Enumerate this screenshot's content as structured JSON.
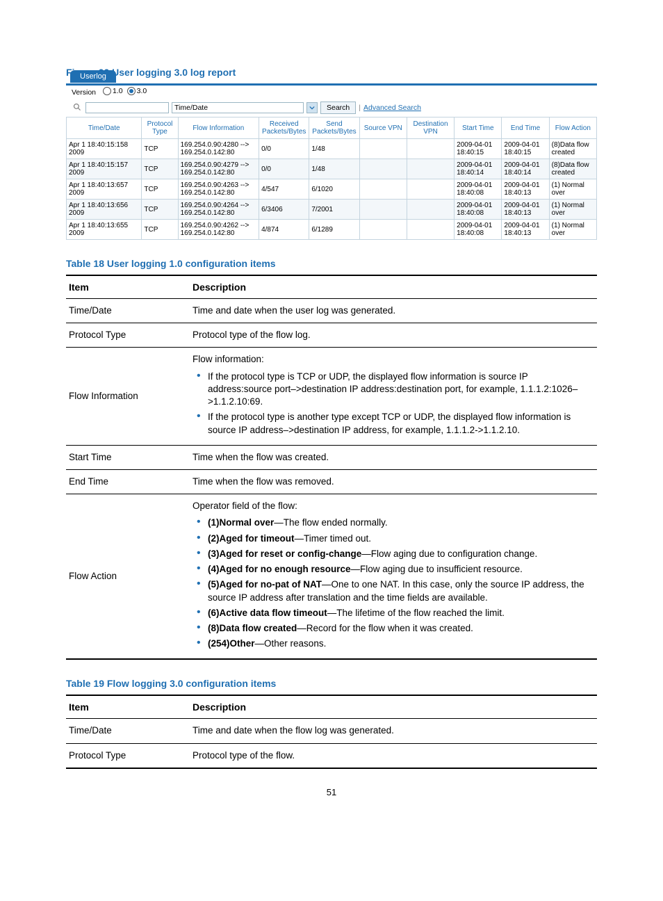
{
  "figure_caption": "Figure 22 User logging 3.0 log report",
  "ui": {
    "tab_label": "Userlog",
    "version_label": "Version",
    "version_options": [
      {
        "label": "1.0",
        "checked": false
      },
      {
        "label": "3.0",
        "checked": true
      }
    ],
    "search_field_value": "",
    "filter_select_value": "Time/Date",
    "search_btn": "Search",
    "advanced_search": "Advanced Search",
    "log_table": {
      "columns": [
        "Time/Date",
        "Protocol Type",
        "Flow Information",
        "Received Packets/Bytes",
        "Send Packets/Bytes",
        "Source VPN",
        "Destination VPN",
        "Start Time",
        "End Time",
        "Flow Action"
      ],
      "col_widths": [
        "13.5%",
        "6.5%",
        "14.5%",
        "9%",
        "9%",
        "8.5%",
        "8.5%",
        "8.5%",
        "8.5%",
        "8.5%"
      ],
      "rows": [
        {
          "time": "Apr 1 18:40:15:158 2009",
          "proto": "TCP",
          "flow": "169.254.0.90:4280 --> 169.254.0.142:80",
          "recv": "0/0",
          "send": "1/48",
          "svpn": "",
          "dvpn": "",
          "start": "2009-04-01 18:40:15",
          "end": "2009-04-01 18:40:15",
          "action": "(8)Data flow created"
        },
        {
          "time": "Apr 1 18:40:15:157 2009",
          "proto": "TCP",
          "flow": "169.254.0.90:4279 --> 169.254.0.142:80",
          "recv": "0/0",
          "send": "1/48",
          "svpn": "",
          "dvpn": "",
          "start": "2009-04-01 18:40:14",
          "end": "2009-04-01 18:40:14",
          "action": "(8)Data flow created"
        },
        {
          "time": "Apr 1 18:40:13:657 2009",
          "proto": "TCP",
          "flow": "169.254.0.90:4263 --> 169.254.0.142:80",
          "recv": "4/547",
          "send": "6/1020",
          "svpn": "",
          "dvpn": "",
          "start": "2009-04-01 18:40:08",
          "end": "2009-04-01 18:40:13",
          "action": "(1) Normal over"
        },
        {
          "time": "Apr 1 18:40:13:656 2009",
          "proto": "TCP",
          "flow": "169.254.0.90:4264 --> 169.254.0.142:80",
          "recv": "6/3406",
          "send": "7/2001",
          "svpn": "",
          "dvpn": "",
          "start": "2009-04-01 18:40:08",
          "end": "2009-04-01 18:40:13",
          "action": "(1) Normal over"
        },
        {
          "time": "Apr 1 18:40:13:655 2009",
          "proto": "TCP",
          "flow": "169.254.0.90:4262 --> 169.254.0.142:80",
          "recv": "4/874",
          "send": "6/1289",
          "svpn": "",
          "dvpn": "",
          "start": "2009-04-01 18:40:08",
          "end": "2009-04-01 18:40:13",
          "action": "(1) Normal over"
        }
      ]
    }
  },
  "table18": {
    "caption": "Table 18 User logging 1.0 configuration items",
    "header_item": "Item",
    "header_desc": "Description",
    "rows": [
      {
        "item": "Time/Date",
        "desc_html": "Time and date when the user log was generated."
      },
      {
        "item": "Protocol Type",
        "desc_html": "Protocol type of the flow log."
      },
      {
        "item": "Flow Information",
        "desc_html": "Flow information:<ul class=\"desc-ul\"><li>If the protocol type is TCP or UDP, the displayed flow information is source IP address:source port–&gt;destination IP address:destination port, for example, 1.1.1.2:1026–&gt;1.1.2.10:69.</li><li>If the protocol type is another type except TCP or UDP, the displayed flow information is source IP address–&gt;destination IP address, for example, 1.1.1.2-&gt;1.1.2.10.</li></ul>"
      },
      {
        "item": "Start Time",
        "desc_html": "Time when the flow was created."
      },
      {
        "item": "End Time",
        "desc_html": "Time when the flow was removed."
      },
      {
        "item": "Flow Action",
        "desc_html": "Operator field of the flow:<ul class=\"desc-ul\"><li><b>(1)Normal over</b>—The flow ended normally.</li><li><b>(2)Aged for timeout</b>—Timer timed out.</li><li><b>(3)Aged for reset or config-change</b>—Flow aging due to configuration change.</li><li><b>(4)Aged for no enough resource</b>—Flow aging due to insufficient resource.</li><li><b>(5)Aged for no-pat of NAT</b>—One to one NAT. In this case, only the source IP address, the source IP address after translation and the time fields are available.</li><li><b>(6)Active data flow timeout</b>—The lifetime of the flow reached the limit.</li><li><b>(8)Data flow created</b>—Record for the flow when it was created.</li><li><b>(254)Other</b>—Other reasons.</li></ul>"
      }
    ]
  },
  "table19": {
    "caption": "Table 19 Flow logging 3.0 configuration items",
    "header_item": "Item",
    "header_desc": "Description",
    "rows": [
      {
        "item": "Time/Date",
        "desc_html": "Time and date when the flow log was generated."
      },
      {
        "item": "Protocol Type",
        "desc_html": "Protocol type of the flow."
      }
    ]
  },
  "page_number": "51"
}
